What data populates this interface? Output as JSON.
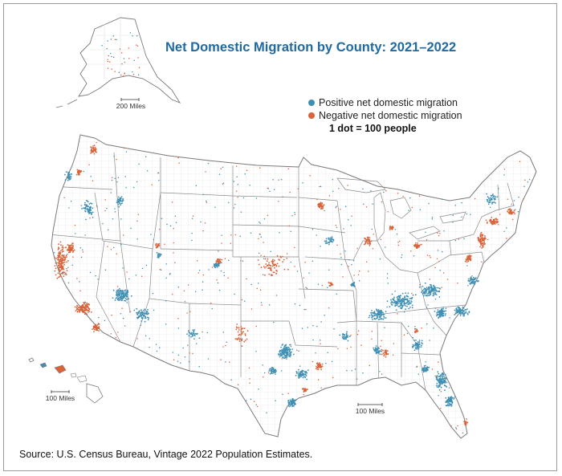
{
  "map": {
    "title": "Net Domestic Migration by County: 2021–2022",
    "legend": {
      "positive_label": "Positive net domestic migration",
      "negative_label": "Negative net domestic migration",
      "dot_scale": "1 dot = 100 people"
    },
    "scale_bars": {
      "alaska": "200 Miles",
      "hawaii": "100 Miles",
      "conus": "100 Miles"
    },
    "source": "Source: U.S. Census Bureau, Vintage 2022 Population Estimates.",
    "colors": {
      "positive": "#3f8fb3",
      "negative": "#d9643a",
      "county_lines": "#e2e2e2",
      "state_lines": "#8a8a8a",
      "title": "#1f6aa0"
    }
  }
}
